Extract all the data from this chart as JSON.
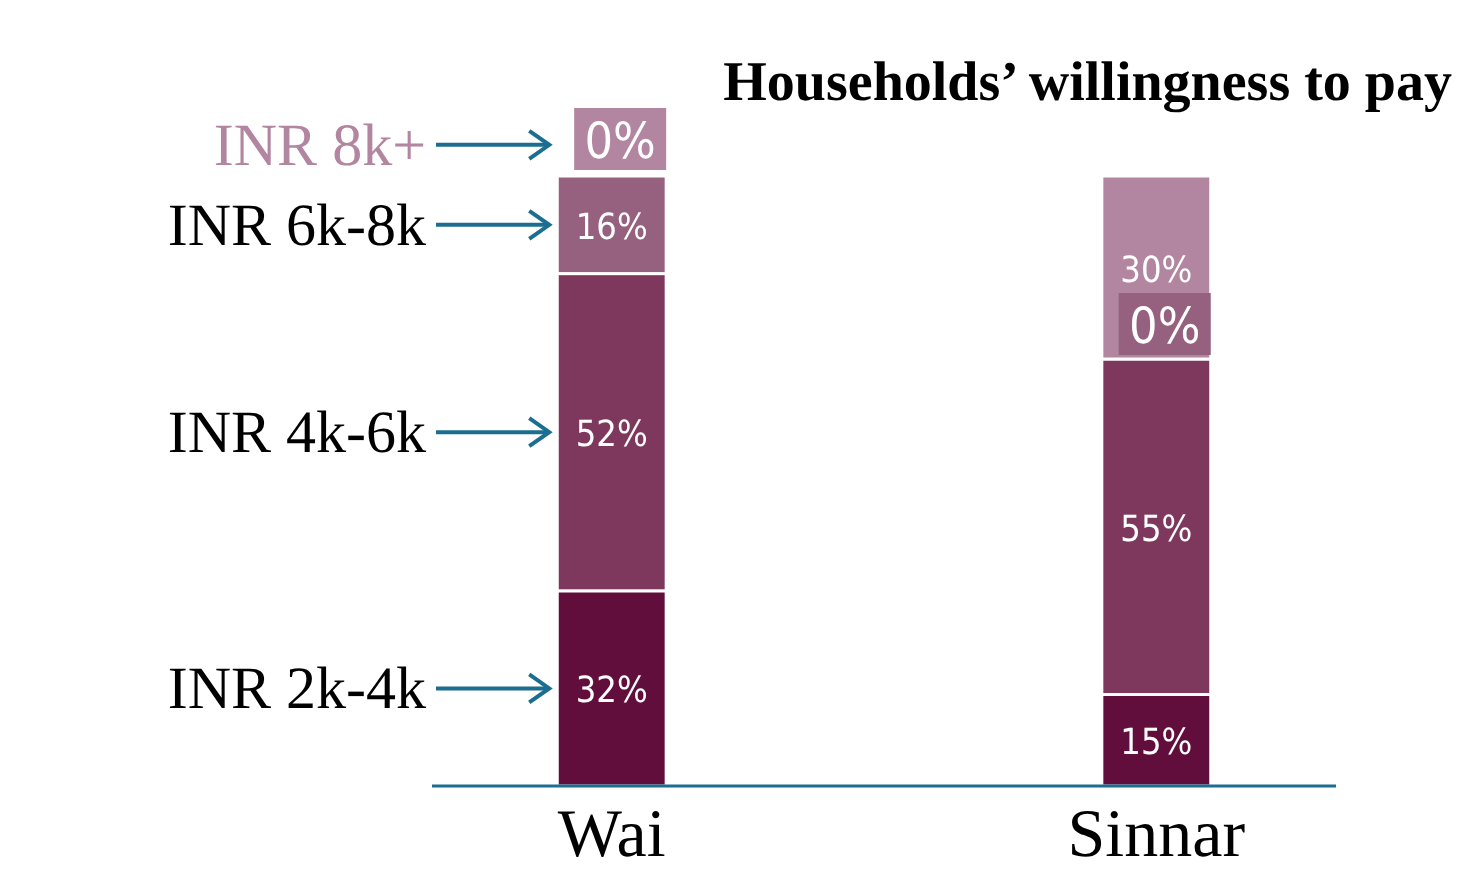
{
  "chart_data": {
    "type": "bar",
    "title": "Households’ willingness to pay",
    "stacked": true,
    "categories": [
      "Wai",
      "Sinnar"
    ],
    "series": [
      {
        "name": "INR 2k-4k",
        "color": "#620e3d",
        "values": [
          32,
          15
        ],
        "value_labels": [
          "32%",
          "15%"
        ]
      },
      {
        "name": "INR 4k-6k",
        "color": "#7e385e",
        "values": [
          52,
          55
        ],
        "value_labels": [
          "52%",
          "55%"
        ]
      },
      {
        "name": "INR 6k-8k",
        "color": "#96607f",
        "values": [
          16,
          0
        ],
        "value_labels": [
          "16%",
          "0%"
        ]
      },
      {
        "name": "INR 8k+",
        "color": "#b286a0",
        "values": [
          0,
          30
        ],
        "value_labels": [
          "0%",
          "30%"
        ]
      }
    ]
  }
}
